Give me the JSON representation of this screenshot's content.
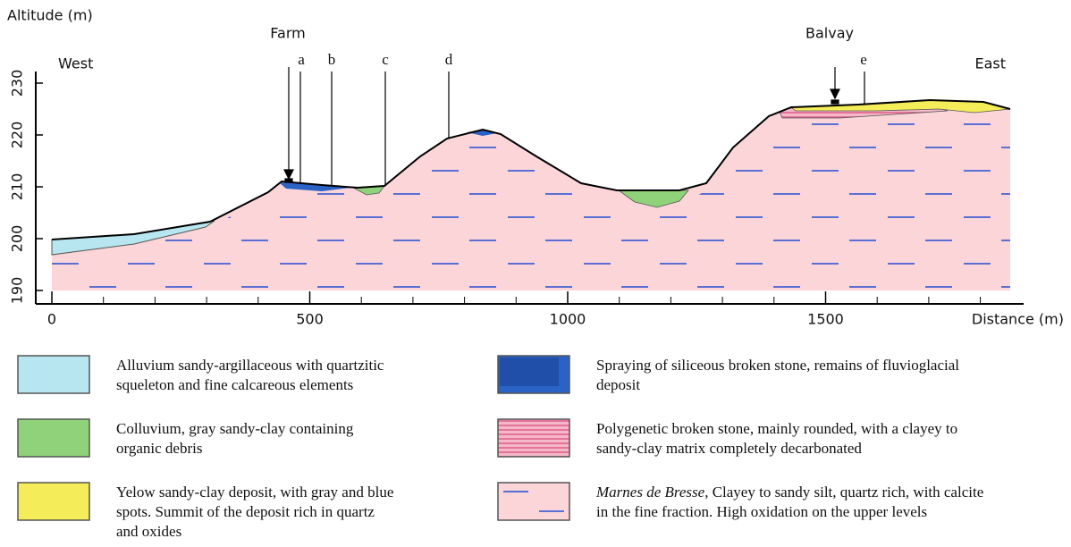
{
  "axes": {
    "y_label": "Altitude (m)",
    "x_label": "Distance (m)",
    "y_ticks": [
      190,
      200,
      210,
      220,
      230
    ],
    "x_ticks": [
      0,
      500,
      1000,
      1500
    ]
  },
  "profile": {
    "west": "West",
    "east": "East",
    "places": [
      "Farm",
      "Balvay"
    ],
    "sections": [
      "a",
      "b",
      "c",
      "d",
      "e"
    ]
  },
  "legend": [
    {
      "lines": [
        "Alluvium sandy-argillaceous with quartzitic",
        "squeleton and fine calcareous elements"
      ]
    },
    {
      "lines": [
        "Colluvium, gray sandy-clay containing",
        "organic debris"
      ]
    },
    {
      "lines": [
        "Yelow sandy-clay deposit, with gray and blue",
        "spots. Summit of the deposit rich in quartz",
        "and oxides"
      ]
    },
    {
      "lines": [
        "Spraying of siliceous broken stone, remains of fluvioglacial",
        "deposit"
      ]
    },
    {
      "lines": [
        "Polygenetic broken stone, mainly rounded, with a clayey to",
        "sandy-clay matrix completely decarbonated"
      ]
    },
    {
      "term": "Marnes de Bresse",
      "lines": [
        ", Clayey to sandy silt, quartz rich, with calcite",
        " in the fine fraction. High oxidation on the upper levels"
      ]
    }
  ]
}
